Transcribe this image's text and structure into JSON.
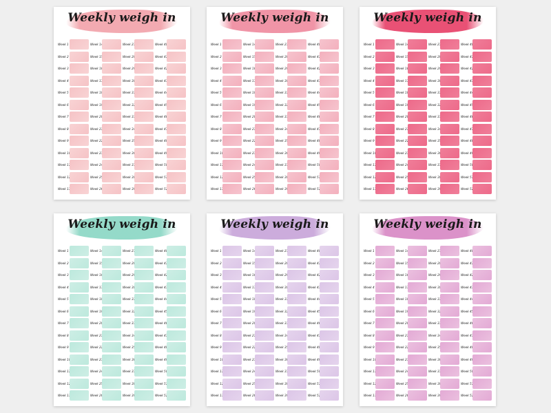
{
  "sheets": [
    {
      "title": "Weekly weigh in",
      "banner": "#f2a6ad",
      "box": "#f6c3c6",
      "box2": "#f8d3d4"
    },
    {
      "title": "Weekly weigh in",
      "banner": "#ef8fa2",
      "box": "#f3b0bd",
      "box2": "#f6c4ce"
    },
    {
      "title": "Weekly weigh in",
      "banner": "#e8486e",
      "box": "#ed6a8a",
      "box2": "#f07e99"
    },
    {
      "title": "Weekly weigh in",
      "banner": "#8fd8c6",
      "box": "#bde9dd",
      "box2": "#cdeee5"
    },
    {
      "title": "Weekly weigh in",
      "banner": "#c9a8da",
      "box": "#dcc6e7",
      "box2": "#e5d4ed"
    },
    {
      "title": "Weekly weigh in",
      "banner": "#d98cc6",
      "box": "#e3aad5",
      "box2": "#ebc0df"
    }
  ],
  "weeks": {
    "prefix": "Week",
    "col1": [
      1,
      2,
      3,
      4,
      5,
      6,
      7,
      8,
      9,
      10,
      11,
      12,
      13
    ],
    "col2": [
      14,
      15,
      16,
      17,
      18,
      19,
      20,
      21,
      22,
      23,
      24,
      25,
      26
    ],
    "col3": [
      27,
      28,
      29,
      30,
      31,
      32,
      33,
      34,
      35,
      36,
      37,
      38,
      39
    ],
    "col4": [
      40,
      41,
      42,
      43,
      44,
      45,
      46,
      47,
      48,
      49,
      50,
      51,
      52
    ]
  }
}
